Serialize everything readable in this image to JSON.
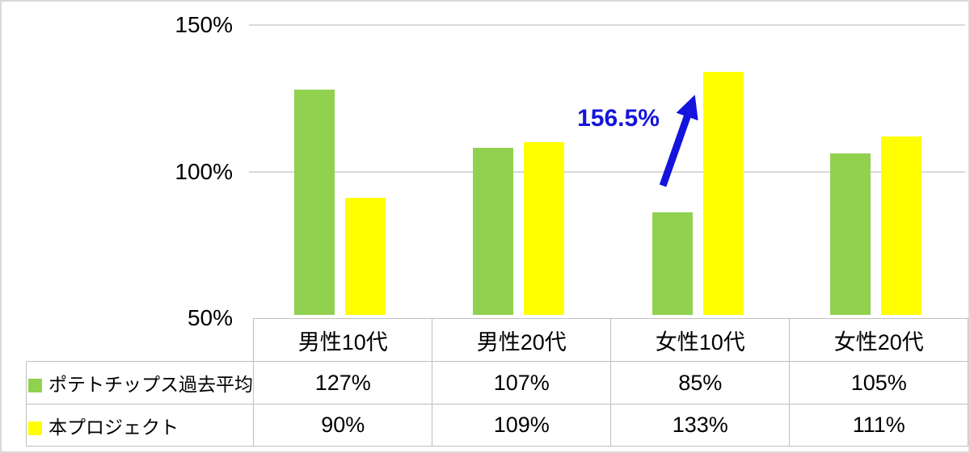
{
  "chart_data": {
    "type": "bar",
    "categories": [
      "男性10代",
      "男性20代",
      "女性10代",
      "女性20代"
    ],
    "series": [
      {
        "name": "ポテトチップス過去平均",
        "color": "#92D050",
        "values": [
          127,
          107,
          85,
          105
        ],
        "labels": [
          "127%",
          "107%",
          "85%",
          "105%"
        ]
      },
      {
        "name": "本プロジェクト",
        "color": "#FFFF00",
        "values": [
          90,
          109,
          133,
          111
        ],
        "labels": [
          "90%",
          "109%",
          "133%",
          "111%"
        ]
      }
    ],
    "y_ticks": [
      {
        "value": 150,
        "label": "150%"
      },
      {
        "value": 100,
        "label": "100%"
      },
      {
        "value": 50,
        "label": "50%"
      }
    ],
    "ylim": [
      50,
      150
    ],
    "grid": true,
    "legend_position": "data-table-left",
    "annotation": {
      "text": "156.5%",
      "color": "#1414DC",
      "arrow_points_to": "女性10代 本プロジェクト bar (133%)"
    }
  },
  "colors": {
    "gridline": "#D9D9D9",
    "table_border": "#BFBFBF",
    "frame": "#D9D9D9",
    "text": "#000000"
  }
}
